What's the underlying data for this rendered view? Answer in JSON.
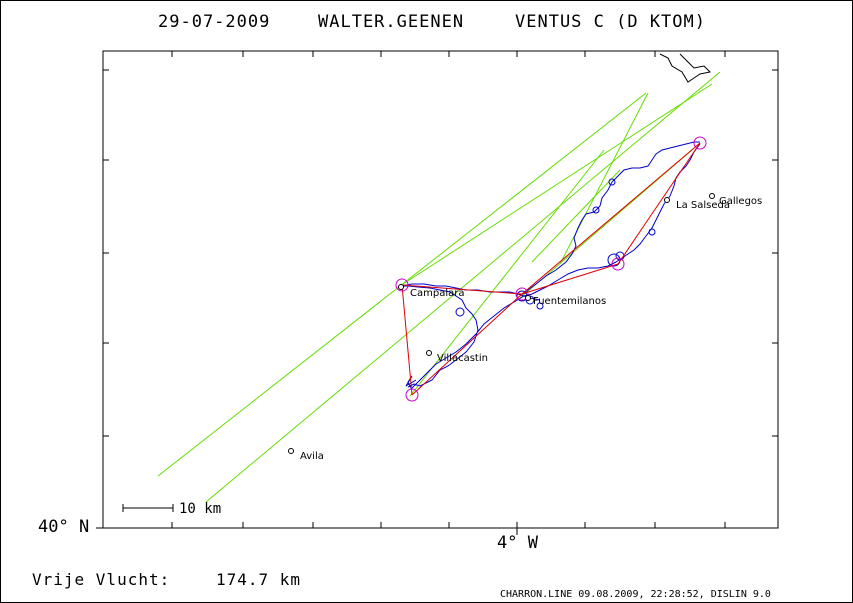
{
  "header": {
    "date": "29-07-2009",
    "pilot": "WALTER.GEENEN",
    "glider": "VENTUS C (D KTOM)"
  },
  "axes": {
    "lat_label": "40° N",
    "lon_label": "4° W"
  },
  "scale_bar": {
    "label": "10 km"
  },
  "places": [
    {
      "name": "Campalara"
    },
    {
      "name": "Fuentemilanos"
    },
    {
      "name": "La Salseda"
    },
    {
      "name": "Gallegos"
    },
    {
      "name": "Villacastin"
    },
    {
      "name": "Avila"
    }
  ],
  "footer": {
    "flight_label": "Vrije Vlucht:",
    "distance": "174.7 km",
    "credit": "CHARRON.LINE 09.08.2009, 22:28:52, DISLIN 9.0"
  },
  "colors": {
    "track": "#0000cc",
    "task": "#e00000",
    "sectors": "#66dd00",
    "turnpoint": "#cc00cc",
    "border": "#000000"
  }
}
